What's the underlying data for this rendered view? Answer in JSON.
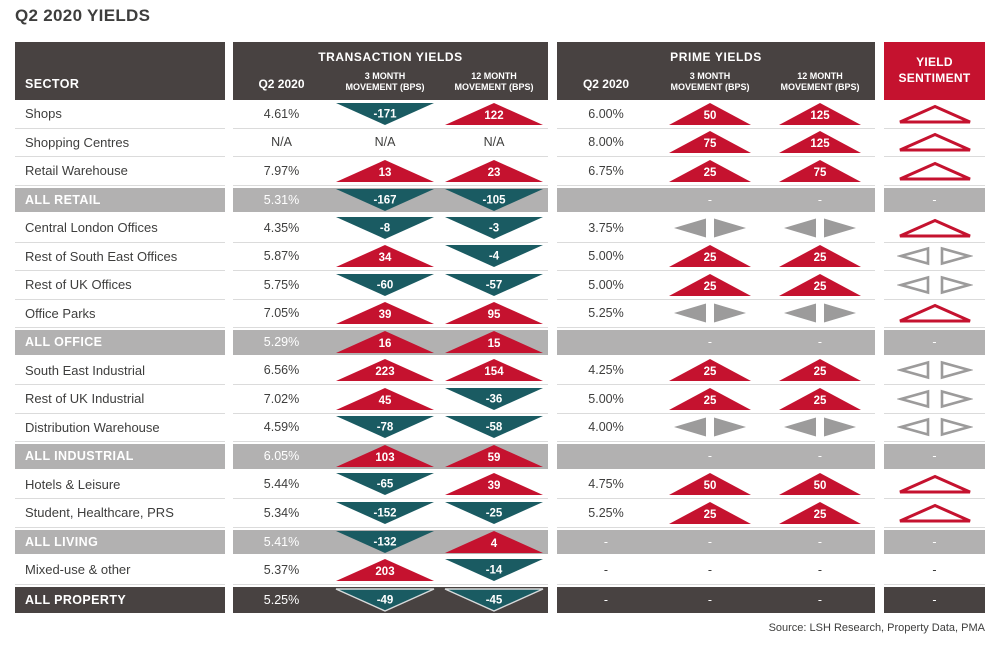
{
  "title": "Q2 2020 YIELDS",
  "source": "Source: LSH Research, Property Data, PMA",
  "colors": {
    "red": "#c5122f",
    "teal": "#1a5b62",
    "header_dark": "#484241",
    "group_band_gray": "#b2b1b1",
    "icon_gray": "#9c9b9b",
    "sentiment_header_red": "#c5122f",
    "row_border": "#dbdbdb",
    "text": "#3e3e3d"
  },
  "table": {
    "sector_header": "SECTOR",
    "transaction_group": "TRANSACTION YIELDS",
    "prime_group": "PRIME YIELDS",
    "sub_q2": "Q2 2020",
    "sub_m3": "3 MONTH\nMOVEMENT (BPS)",
    "sub_m12": "12 MONTH\nMOVEMENT (BPS)",
    "sentiment_header": "YIELD\nSENTIMENT"
  },
  "icon_legend": {
    "up": "red solid upward triangle (yield rise, bps inside)",
    "down": "teal solid downward triangle (yield fall, bps inside)",
    "flat": "gray left/right solid triangle pair (no change)",
    "sentiment_up": "red outlined upward triangle",
    "sentiment_flat": "gray outlined left/right triangle pair"
  },
  "chart_data": {
    "type": "table",
    "title": "Q2 2020 YIELDS",
    "column_groups": [
      "TRANSACTION YIELDS",
      "PRIME YIELDS",
      "YIELD SENTIMENT"
    ],
    "columns": [
      "SECTOR",
      "Transaction Q2 2020",
      "Transaction 3 Month Movement (bps)",
      "Transaction 12 Month Movement (bps)",
      "Prime Q2 2020",
      "Prime 3 Month Movement (bps)",
      "Prime 12 Month Movement (bps)",
      "Yield Sentiment"
    ],
    "rows": [
      {
        "sector": "Shops",
        "style": "normal",
        "t_q2": "4.61%",
        "t_m3": {
          "dir": "down",
          "bps": "-171"
        },
        "t_m12": {
          "dir": "up",
          "bps": "122"
        },
        "p_q2": "6.00%",
        "p_m3": {
          "dir": "up",
          "bps": "50"
        },
        "p_m12": {
          "dir": "up",
          "bps": "125"
        },
        "sentiment": "up"
      },
      {
        "sector": "Shopping Centres",
        "style": "normal",
        "t_q2": "N/A",
        "t_m3": {
          "dir": "na"
        },
        "t_m12": {
          "dir": "na"
        },
        "p_q2": "8.00%",
        "p_m3": {
          "dir": "up",
          "bps": "75"
        },
        "p_m12": {
          "dir": "up",
          "bps": "125"
        },
        "sentiment": "up"
      },
      {
        "sector": "Retail Warehouse",
        "style": "normal",
        "t_q2": "7.97%",
        "t_m3": {
          "dir": "up",
          "bps": "13"
        },
        "t_m12": {
          "dir": "up",
          "bps": "23"
        },
        "p_q2": "6.75%",
        "p_m3": {
          "dir": "up",
          "bps": "25"
        },
        "p_m12": {
          "dir": "up",
          "bps": "75"
        },
        "sentiment": "up"
      },
      {
        "sector": "ALL RETAIL",
        "style": "group",
        "t_q2": "5.31%",
        "t_m3": {
          "dir": "down",
          "bps": "-167"
        },
        "t_m12": {
          "dir": "down",
          "bps": "-105"
        },
        "p_q2": "",
        "p_m3": {
          "dir": "dash"
        },
        "p_m12": {
          "dir": "dash"
        },
        "sentiment": "dash"
      },
      {
        "sector": "Central London Offices",
        "style": "normal",
        "t_q2": "4.35%",
        "t_m3": {
          "dir": "down",
          "bps": "-8"
        },
        "t_m12": {
          "dir": "down",
          "bps": "-3"
        },
        "p_q2": "3.75%",
        "p_m3": {
          "dir": "flat"
        },
        "p_m12": {
          "dir": "flat"
        },
        "sentiment": "up"
      },
      {
        "sector": "Rest of South East Offices",
        "style": "normal",
        "t_q2": "5.87%",
        "t_m3": {
          "dir": "up",
          "bps": "34"
        },
        "t_m12": {
          "dir": "down",
          "bps": "-4"
        },
        "p_q2": "5.00%",
        "p_m3": {
          "dir": "up",
          "bps": "25"
        },
        "p_m12": {
          "dir": "up",
          "bps": "25"
        },
        "sentiment": "flat"
      },
      {
        "sector": "Rest of UK Offices",
        "style": "normal",
        "t_q2": "5.75%",
        "t_m3": {
          "dir": "down",
          "bps": "-60"
        },
        "t_m12": {
          "dir": "down",
          "bps": "-57"
        },
        "p_q2": "5.00%",
        "p_m3": {
          "dir": "up",
          "bps": "25"
        },
        "p_m12": {
          "dir": "up",
          "bps": "25"
        },
        "sentiment": "flat"
      },
      {
        "sector": "Office Parks",
        "style": "normal",
        "t_q2": "7.05%",
        "t_m3": {
          "dir": "up",
          "bps": "39"
        },
        "t_m12": {
          "dir": "up",
          "bps": "95"
        },
        "p_q2": "5.25%",
        "p_m3": {
          "dir": "flat"
        },
        "p_m12": {
          "dir": "flat"
        },
        "sentiment": "up"
      },
      {
        "sector": "ALL OFFICE",
        "style": "group",
        "t_q2": "5.29%",
        "t_m3": {
          "dir": "up",
          "bps": "16"
        },
        "t_m12": {
          "dir": "up",
          "bps": "15"
        },
        "p_q2": "",
        "p_m3": {
          "dir": "dash"
        },
        "p_m12": {
          "dir": "dash"
        },
        "sentiment": "dash"
      },
      {
        "sector": "South East Industrial",
        "style": "normal",
        "t_q2": "6.56%",
        "t_m3": {
          "dir": "up",
          "bps": "223"
        },
        "t_m12": {
          "dir": "up",
          "bps": "154"
        },
        "p_q2": "4.25%",
        "p_m3": {
          "dir": "up",
          "bps": "25"
        },
        "p_m12": {
          "dir": "up",
          "bps": "25"
        },
        "sentiment": "flat"
      },
      {
        "sector": "Rest of UK Industrial",
        "style": "normal",
        "t_q2": "7.02%",
        "t_m3": {
          "dir": "up",
          "bps": "45"
        },
        "t_m12": {
          "dir": "down",
          "bps": "-36"
        },
        "p_q2": "5.00%",
        "p_m3": {
          "dir": "up",
          "bps": "25"
        },
        "p_m12": {
          "dir": "up",
          "bps": "25"
        },
        "sentiment": "flat"
      },
      {
        "sector": "Distribution Warehouse",
        "style": "normal",
        "t_q2": "4.59%",
        "t_m3": {
          "dir": "down",
          "bps": "-78"
        },
        "t_m12": {
          "dir": "down",
          "bps": "-58"
        },
        "p_q2": "4.00%",
        "p_m3": {
          "dir": "flat"
        },
        "p_m12": {
          "dir": "flat"
        },
        "sentiment": "flat"
      },
      {
        "sector": "ALL INDUSTRIAL",
        "style": "group",
        "t_q2": "6.05%",
        "t_m3": {
          "dir": "up",
          "bps": "103"
        },
        "t_m12": {
          "dir": "up",
          "bps": "59"
        },
        "p_q2": "",
        "p_m3": {
          "dir": "dash"
        },
        "p_m12": {
          "dir": "dash"
        },
        "sentiment": "dash"
      },
      {
        "sector": "Hotels & Leisure",
        "style": "normal",
        "t_q2": "5.44%",
        "t_m3": {
          "dir": "down",
          "bps": "-65"
        },
        "t_m12": {
          "dir": "up",
          "bps": "39"
        },
        "p_q2": "4.75%",
        "p_m3": {
          "dir": "up",
          "bps": "50"
        },
        "p_m12": {
          "dir": "up",
          "bps": "50"
        },
        "sentiment": "up"
      },
      {
        "sector": "Student, Healthcare, PRS",
        "style": "normal",
        "t_q2": "5.34%",
        "t_m3": {
          "dir": "down",
          "bps": "-152"
        },
        "t_m12": {
          "dir": "down",
          "bps": "-25"
        },
        "p_q2": "5.25%",
        "p_m3": {
          "dir": "up",
          "bps": "25"
        },
        "p_m12": {
          "dir": "up",
          "bps": "25"
        },
        "sentiment": "up"
      },
      {
        "sector": "ALL LIVING",
        "style": "group",
        "t_q2": "5.41%",
        "t_m3": {
          "dir": "down",
          "bps": "-132"
        },
        "t_m12": {
          "dir": "up",
          "bps": "4"
        },
        "p_q2": "-",
        "p_m3": {
          "dir": "dash"
        },
        "p_m12": {
          "dir": "dash"
        },
        "sentiment": "dash"
      },
      {
        "sector": "Mixed-use & other",
        "style": "normal",
        "t_q2": "5.37%",
        "t_m3": {
          "dir": "up",
          "bps": "203"
        },
        "t_m12": {
          "dir": "down",
          "bps": "-14"
        },
        "p_q2": "-",
        "p_m3": {
          "dir": "dash"
        },
        "p_m12": {
          "dir": "dash"
        },
        "sentiment": "dash"
      },
      {
        "sector": "ALL PROPERTY",
        "style": "total",
        "t_q2": "5.25%",
        "t_m3": {
          "dir": "down",
          "bps": "-49"
        },
        "t_m12": {
          "dir": "down",
          "bps": "-45"
        },
        "p_q2": "-",
        "p_m3": {
          "dir": "dash"
        },
        "p_m12": {
          "dir": "dash"
        },
        "sentiment": "dash"
      }
    ],
    "source": "Source: LSH Research, Property Data, PMA"
  }
}
